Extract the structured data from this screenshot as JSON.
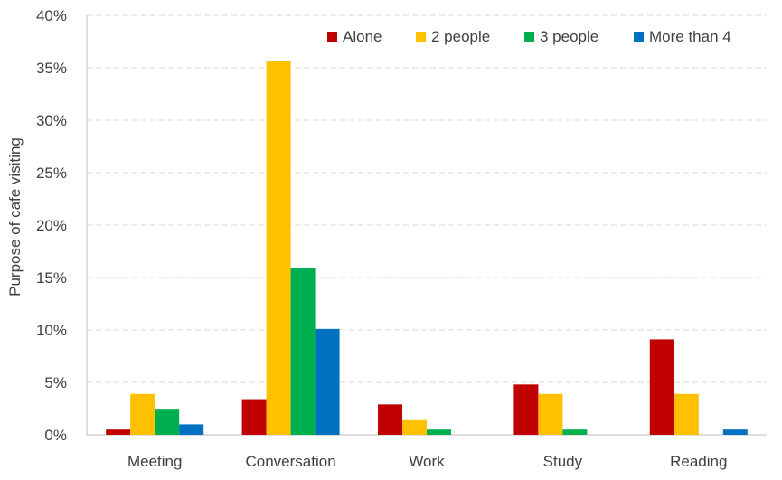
{
  "chart_data": {
    "type": "bar",
    "title": "",
    "xlabel": "",
    "ylabel": "Purpose of cafe visiting",
    "categories": [
      "Meeting",
      "Conversation",
      "Work",
      "Study",
      "Reading"
    ],
    "series": [
      {
        "name": "Alone",
        "color": "#C00000",
        "values": [
          0.5,
          3.4,
          2.9,
          4.8,
          9.1
        ]
      },
      {
        "name": "2 people",
        "color": "#FFC000",
        "values": [
          3.9,
          35.6,
          1.4,
          3.9,
          3.9
        ]
      },
      {
        "name": "3 people",
        "color": "#00B050",
        "values": [
          2.4,
          15.9,
          0.5,
          0.5,
          0
        ]
      },
      {
        "name": "More than 4",
        "color": "#0070C0",
        "values": [
          1.0,
          10.1,
          0,
          0,
          0.5
        ]
      }
    ],
    "ylim": [
      0,
      40
    ],
    "y_ticks": [
      "0%",
      "5%",
      "10%",
      "15%",
      "20%",
      "25%",
      "30%",
      "35%",
      "40%"
    ],
    "y_tick_values": [
      0,
      5,
      10,
      15,
      20,
      25,
      30,
      35,
      40
    ],
    "grid": true,
    "legend_position": "top-right"
  }
}
